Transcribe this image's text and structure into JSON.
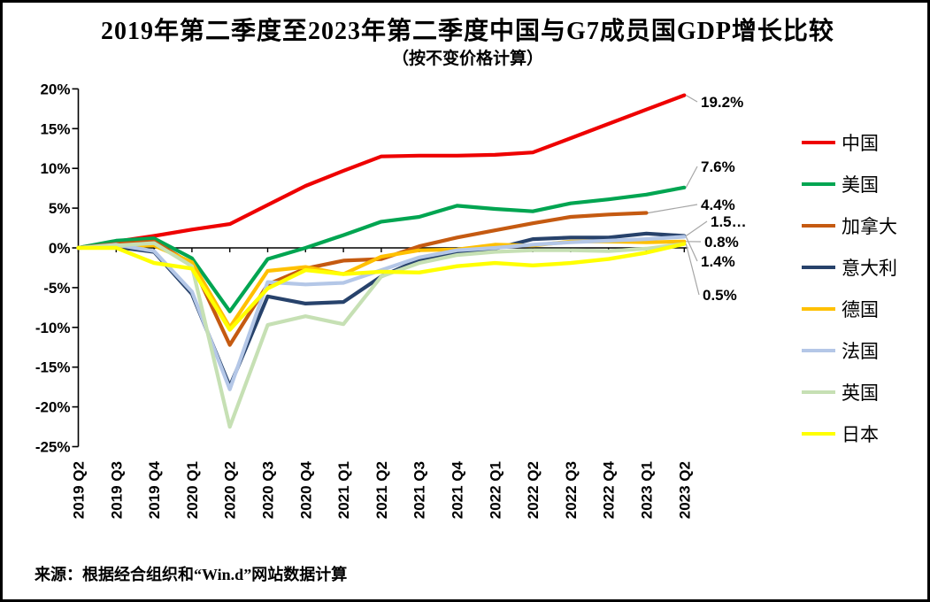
{
  "title": "2019年第二季度至2023年第二季度中国与G7成员国GDP增长比较",
  "subtitle": "（按不变价格计算）",
  "source": "来源：根据经合组织和“Win.d”网站数据计算",
  "legend": [
    {
      "id": "china",
      "label": "中国",
      "color": "#EE0000"
    },
    {
      "id": "usa",
      "label": "美国",
      "color": "#00A551"
    },
    {
      "id": "canada",
      "label": "加拿大",
      "color": "#C55A11"
    },
    {
      "id": "italy",
      "label": "意大利",
      "color": "#27426B"
    },
    {
      "id": "germany",
      "label": "德国",
      "color": "#FFC000"
    },
    {
      "id": "france",
      "label": "法国",
      "color": "#B4C7E7"
    },
    {
      "id": "uk",
      "label": "英国",
      "color": "#C6E0B4"
    },
    {
      "id": "japan",
      "label": "日本",
      "color": "#FFFF00"
    }
  ],
  "chart_data": {
    "type": "line",
    "title": "2019年第二季度至2023年第二季度中国与G7成员国GDP增长比较",
    "subtitle": "（按不变价格计算）",
    "xlabel": "",
    "ylabel": "",
    "ylim": [
      -25,
      20
    ],
    "y_tick_step": 5,
    "grid": false,
    "legend_position": "right",
    "y_ticks": [
      "20%",
      "15%",
      "10%",
      "5%",
      "0%",
      "-5%",
      "-10%",
      "-15%",
      "-20%",
      "-25%"
    ],
    "categories": [
      "2019 Q2",
      "2019 Q3",
      "2019 Q4",
      "2020 Q1",
      "2020 Q2",
      "2020 Q3",
      "2020 Q4",
      "2021 Q1",
      "2021 Q2",
      "2021 Q3",
      "2021 Q4",
      "2022 Q1",
      "2022 Q2",
      "2022 Q3",
      "2022 Q4",
      "2023 Q1",
      "2023 Q2"
    ],
    "series": [
      {
        "id": "china",
        "name": "中国",
        "color": "#EE0000",
        "width": 4.2,
        "values": [
          0,
          0.8,
          1.5,
          2.3,
          3.0,
          5.4,
          7.8,
          9.7,
          11.5,
          11.6,
          11.6,
          11.7,
          12.0,
          13.8,
          15.6,
          17.4,
          19.2
        ]
      },
      {
        "id": "usa",
        "name": "美国",
        "color": "#00A551",
        "width": 4.2,
        "values": [
          0,
          0.9,
          1.2,
          -1.3,
          -8.0,
          -1.4,
          0.0,
          1.6,
          3.3,
          3.9,
          5.3,
          4.9,
          4.6,
          5.6,
          6.1,
          6.7,
          7.6
        ]
      },
      {
        "id": "canada",
        "name": "加拿大",
        "color": "#C55A11",
        "width": 4.2,
        "values": [
          0,
          0.5,
          0.8,
          -2.0,
          -12.2,
          -4.6,
          -2.6,
          -1.6,
          -1.4,
          0.2,
          1.3,
          2.2,
          3.1,
          3.9,
          4.2,
          4.4,
          null
        ]
      },
      {
        "id": "italy",
        "name": "意大利",
        "color": "#27426B",
        "width": 4.2,
        "values": [
          0,
          0.1,
          -0.5,
          -5.8,
          -17.4,
          -6.1,
          -7.0,
          -6.8,
          -3.6,
          -1.5,
          -0.7,
          -0.1,
          1.1,
          1.3,
          1.3,
          1.8,
          1.5
        ]
      },
      {
        "id": "germany",
        "name": "德国",
        "color": "#FFC000",
        "width": 4.2,
        "values": [
          0,
          0.2,
          0.3,
          -1.8,
          -10.0,
          -2.9,
          -2.4,
          -3.3,
          -1.1,
          -0.3,
          -0.2,
          0.4,
          0.3,
          0.8,
          0.8,
          0.7,
          0.8
        ]
      },
      {
        "id": "france",
        "name": "法国",
        "color": "#B4C7E7",
        "width": 4.2,
        "values": [
          0,
          0.4,
          -0.4,
          -5.5,
          -17.8,
          -4.3,
          -4.6,
          -4.4,
          -2.8,
          -1.2,
          -0.3,
          0.0,
          0.4,
          0.7,
          0.9,
          1.1,
          1.4
        ]
      },
      {
        "id": "uk",
        "name": "英国",
        "color": "#C6E0B4",
        "width": 4.2,
        "values": [
          0,
          0.3,
          0.6,
          -2.3,
          -22.5,
          -9.7,
          -8.6,
          -9.6,
          -3.6,
          -1.9,
          -0.9,
          -0.5,
          -0.3,
          -0.3,
          -0.4,
          -0.1,
          0.5
        ]
      },
      {
        "id": "japan",
        "name": "日本",
        "color": "#FFFF00",
        "width": 4.4,
        "values": [
          0,
          0.0,
          -1.9,
          -2.6,
          -10.3,
          -5.1,
          -2.8,
          -3.3,
          -3.0,
          -3.1,
          -2.3,
          -1.9,
          -2.2,
          -1.9,
          -1.4,
          -0.6,
          0.5
        ]
      }
    ],
    "end_labels": [
      {
        "text": "19.2%",
        "series": "中国"
      },
      {
        "text": "7.6%",
        "series": "美国"
      },
      {
        "text": "4.4%",
        "series": "加拿大"
      },
      {
        "text": "1.5…",
        "series": "意大利"
      },
      {
        "text": "0.8%",
        "series": "德国"
      },
      {
        "text": "1.4%",
        "series": "法国"
      },
      {
        "text": "0.5%",
        "series": "英国"
      }
    ]
  }
}
